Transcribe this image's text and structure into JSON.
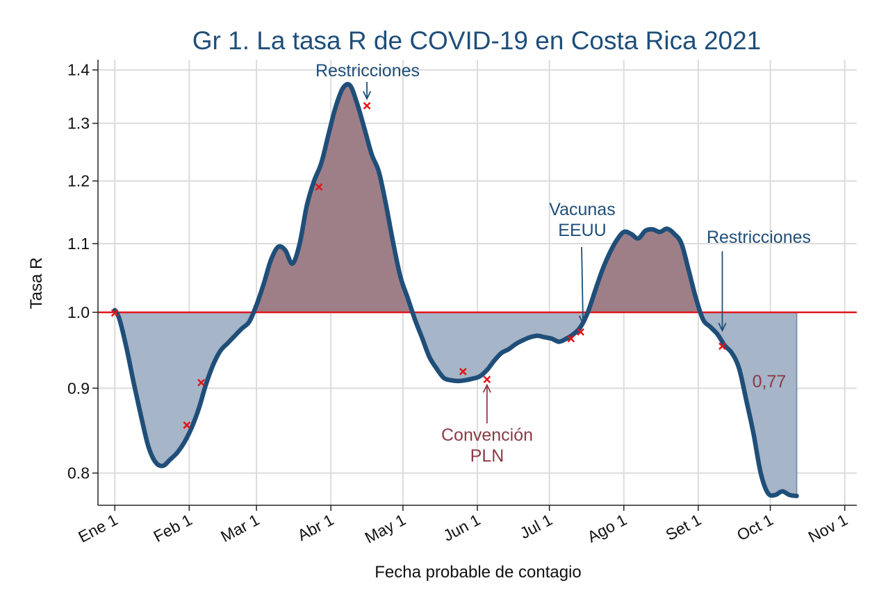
{
  "chart_data": {
    "type": "line",
    "title": "Gr 1. La tasa R de COVID-19 en Costa Rica 2021",
    "xlabel": "Fecha probable de contagio",
    "ylabel": "Tasa R",
    "y_scale": "log",
    "ylim": [
      0.765,
      1.42
    ],
    "y_ticks": [
      0.8,
      0.9,
      1.0,
      1.1,
      1.2,
      1.3,
      1.4
    ],
    "y_tick_labels": [
      "0.8",
      "0.9",
      "1.0",
      "1.1",
      "1.2",
      "1.3",
      "1.4"
    ],
    "x_ticks": [
      "2021-01-01",
      "2021-02-01",
      "2021-03-01",
      "2021-04-01",
      "2021-05-01",
      "2021-06-01",
      "2021-07-01",
      "2021-08-01",
      "2021-09-01",
      "2021-10-01",
      "2021-11-01"
    ],
    "x_tick_labels": [
      "Ene 1",
      "Feb 1",
      "Mar 1",
      "Abr 1",
      "May 1",
      "Jun 1",
      "Jul 1",
      "Ago 1",
      "Set 1",
      "Oct 1",
      "Nov 1"
    ],
    "xlim": [
      "2020-12-25",
      "2021-11-06"
    ],
    "grid": true,
    "reference_line": {
      "y": 1.0,
      "color": "#e0161b"
    },
    "series": [
      {
        "x": [
          "2021-01-01",
          "2021-01-03",
          "2021-01-06",
          "2021-01-09",
          "2021-01-12",
          "2021-01-15",
          "2021-01-18",
          "2021-01-21",
          "2021-01-24",
          "2021-01-27",
          "2021-01-30",
          "2021-02-02",
          "2021-02-05",
          "2021-02-08",
          "2021-02-11",
          "2021-02-14",
          "2021-02-17",
          "2021-02-20",
          "2021-02-23",
          "2021-02-26",
          "2021-03-01",
          "2021-03-04",
          "2021-03-07",
          "2021-03-10",
          "2021-03-13",
          "2021-03-16",
          "2021-03-19",
          "2021-03-22",
          "2021-03-25",
          "2021-03-28",
          "2021-03-31",
          "2021-04-03",
          "2021-04-06",
          "2021-04-09",
          "2021-04-12",
          "2021-04-15",
          "2021-04-18",
          "2021-04-21",
          "2021-04-24",
          "2021-04-27",
          "2021-04-30",
          "2021-05-03",
          "2021-05-06",
          "2021-05-09",
          "2021-05-12",
          "2021-05-15",
          "2021-05-18",
          "2021-05-21",
          "2021-05-24",
          "2021-05-27",
          "2021-05-30",
          "2021-06-02",
          "2021-06-05",
          "2021-06-08",
          "2021-06-11",
          "2021-06-14",
          "2021-06-17",
          "2021-06-20",
          "2021-06-23",
          "2021-06-26",
          "2021-06-29",
          "2021-07-02",
          "2021-07-05",
          "2021-07-08",
          "2021-07-11",
          "2021-07-14",
          "2021-07-17",
          "2021-07-20",
          "2021-07-23",
          "2021-07-26",
          "2021-07-29",
          "2021-08-01",
          "2021-08-04",
          "2021-08-07",
          "2021-08-10",
          "2021-08-13",
          "2021-08-16",
          "2021-08-19",
          "2021-08-22",
          "2021-08-25",
          "2021-08-28",
          "2021-08-31",
          "2021-09-03",
          "2021-09-06",
          "2021-09-09",
          "2021-09-12",
          "2021-09-15",
          "2021-09-18",
          "2021-09-21",
          "2021-09-24",
          "2021-09-27",
          "2021-09-30",
          "2021-10-03",
          "2021-10-06",
          "2021-10-09",
          "2021-10-12"
        ],
        "y": [
          1.003,
          0.99,
          0.95,
          0.905,
          0.865,
          0.83,
          0.812,
          0.808,
          0.815,
          0.823,
          0.835,
          0.852,
          0.875,
          0.905,
          0.93,
          0.948,
          0.958,
          0.968,
          0.978,
          0.987,
          1.01,
          1.04,
          1.075,
          1.095,
          1.09,
          1.07,
          1.1,
          1.16,
          1.2,
          1.23,
          1.28,
          1.33,
          1.365,
          1.37,
          1.335,
          1.29,
          1.245,
          1.215,
          1.16,
          1.1,
          1.05,
          1.02,
          0.99,
          0.965,
          0.94,
          0.925,
          0.913,
          0.91,
          0.909,
          0.91,
          0.912,
          0.915,
          0.923,
          0.935,
          0.945,
          0.95,
          0.957,
          0.962,
          0.966,
          0.968,
          0.966,
          0.964,
          0.96,
          0.964,
          0.97,
          0.98,
          1.0,
          1.03,
          1.06,
          1.085,
          1.105,
          1.118,
          1.115,
          1.108,
          1.12,
          1.122,
          1.118,
          1.123,
          1.115,
          1.1,
          1.06,
          1.02,
          0.99,
          0.98,
          0.97,
          0.955,
          0.945,
          0.925,
          0.885,
          0.845,
          0.8,
          0.778,
          0.776,
          0.78,
          0.776,
          0.775
        ],
        "color": "#1f4e79"
      }
    ],
    "markers": {
      "x": [
        "2021-01-01",
        "2021-01-31",
        "2021-02-06",
        "2021-03-27",
        "2021-04-16",
        "2021-05-26",
        "2021-06-05",
        "2021-07-10",
        "2021-07-14",
        "2021-09-11"
      ],
      "y": [
        0.999,
        0.855,
        0.907,
        1.19,
        1.332,
        0.921,
        0.911,
        0.964,
        0.973,
        0.954
      ],
      "color": "#e0161b"
    },
    "fills": {
      "above_color": "#9e7f88",
      "below_color": "#a6b5c7"
    },
    "annotations": [
      {
        "text": "Restricciones",
        "target": [
          "2021-04-16",
          1.345
        ]
      },
      {
        "text": "Vacunas",
        "text2": "EEUU",
        "target": [
          "2021-07-15",
          0.985
        ]
      },
      {
        "text": "Restricciones",
        "target": [
          "2021-09-11",
          0.975
        ]
      },
      {
        "text": "Convención",
        "text2": "PLN",
        "target": [
          "2021-06-05",
          0.904
        ]
      },
      {
        "text": "0,77"
      }
    ]
  }
}
